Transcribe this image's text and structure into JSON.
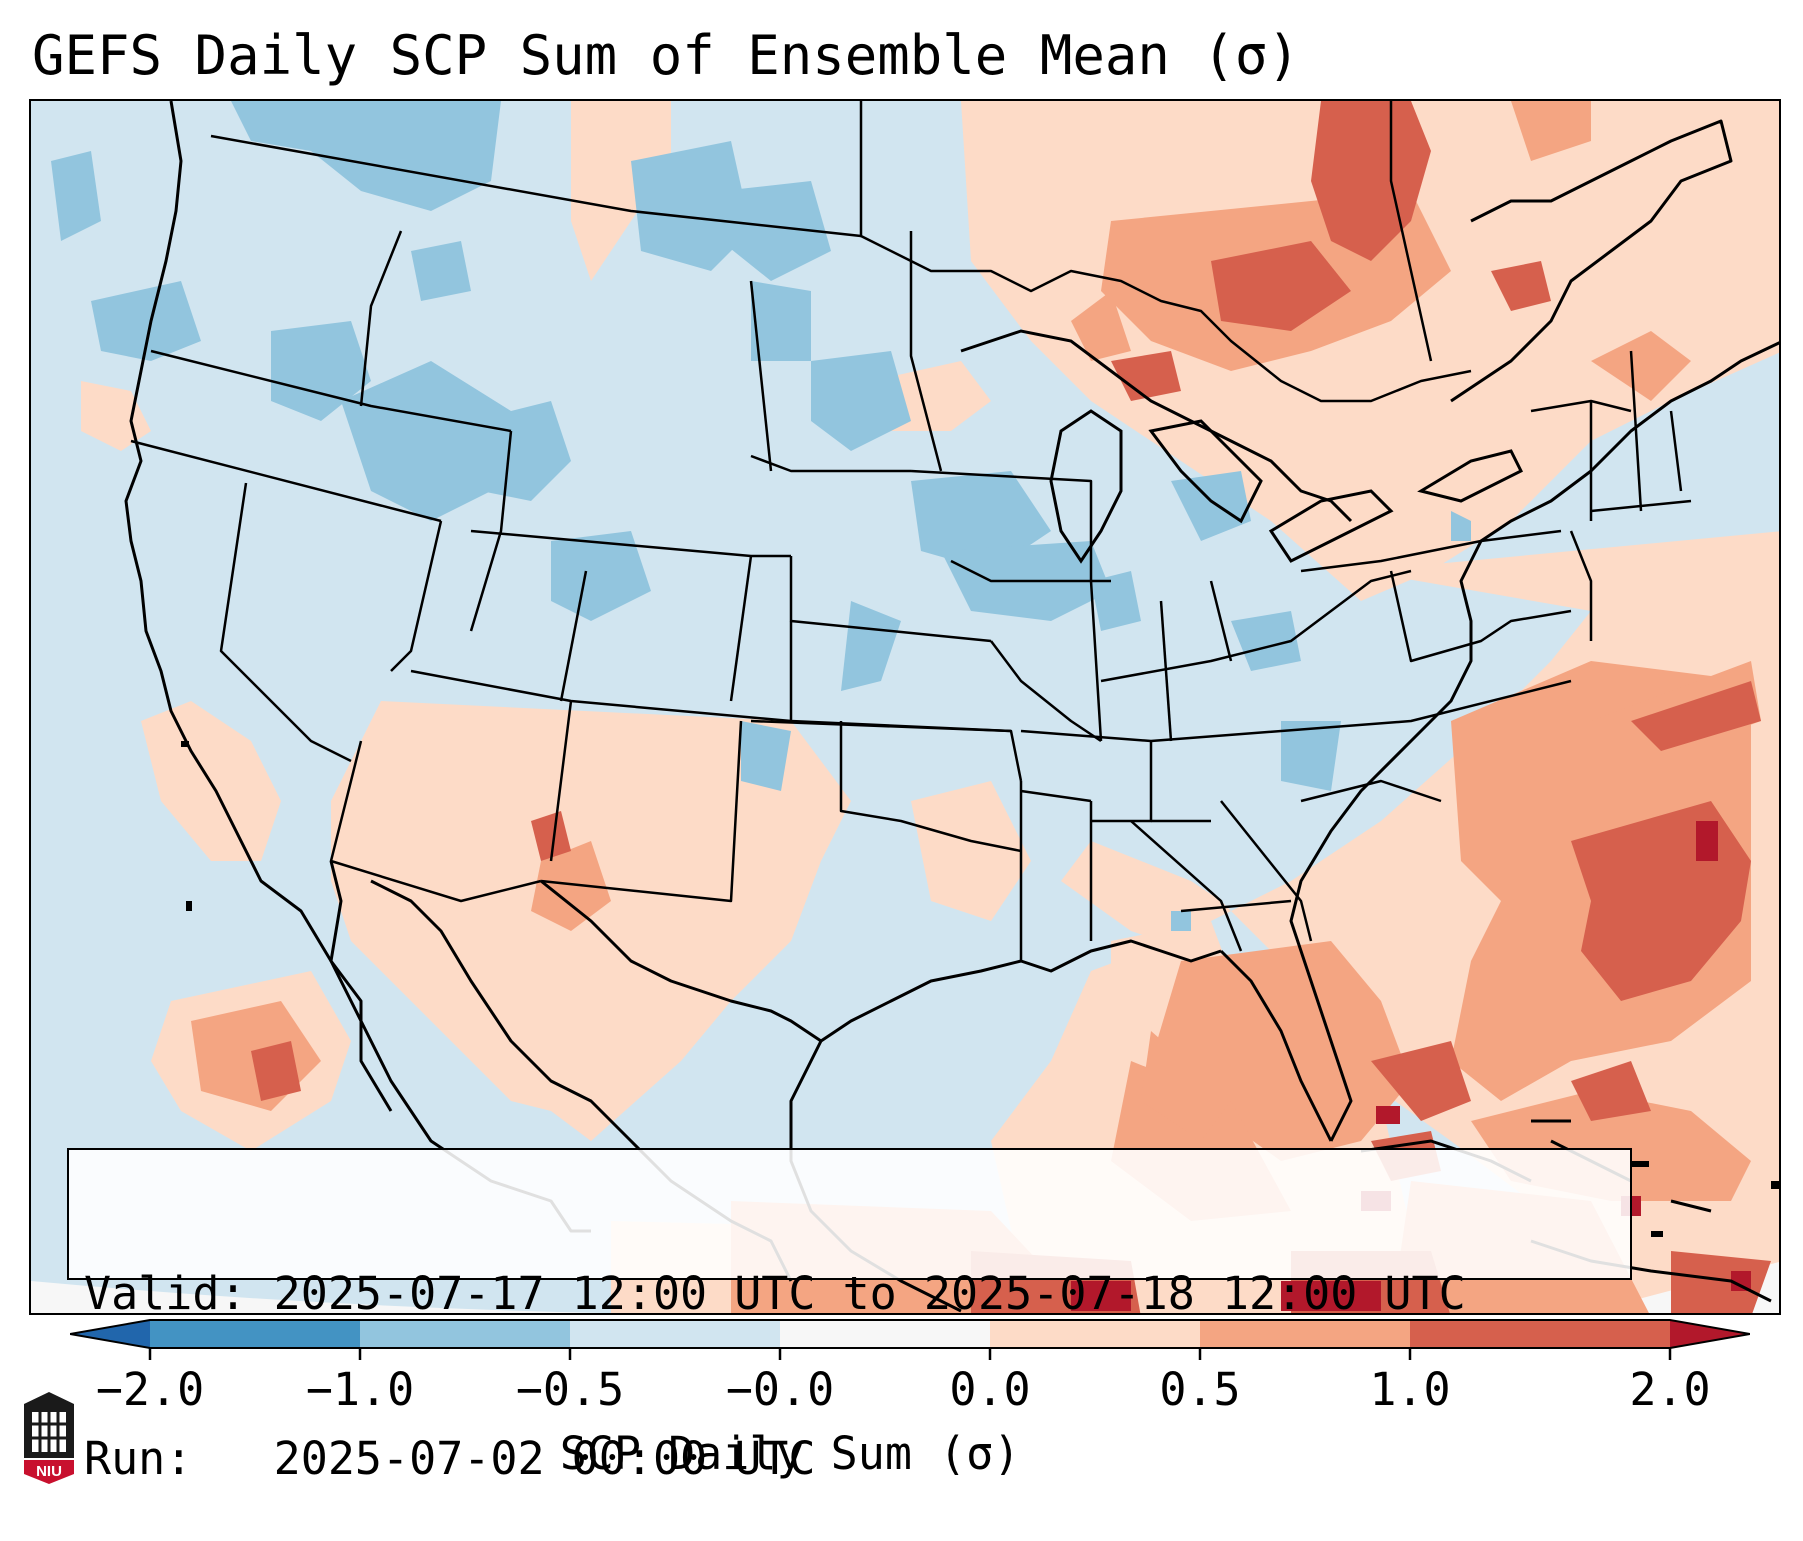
{
  "title": "GEFS Daily SCP Sum of Ensemble Mean (σ)",
  "info_box": {
    "valid_line": "Valid: 2025-07-17 12:00 UTC to 2025-07-18 12:00 UTC",
    "run_line": "Run:   2025-07-02 00:00 UTC"
  },
  "colorbar": {
    "title": "SCP Daily Sum (σ)",
    "tick_labels": [
      "−2.0",
      "−1.0",
      "−0.5",
      "−0.0",
      "0.0",
      "0.5",
      "1.0",
      "2.0"
    ],
    "bins": [
      {
        "range": "< -2.0",
        "color": "#2166ac"
      },
      {
        "range": "-2.0 to -1.0",
        "color": "#4393c3"
      },
      {
        "range": "-1.0 to -0.5",
        "color": "#92c5de"
      },
      {
        "range": "-0.5 to -0.0",
        "color": "#d1e5f0"
      },
      {
        "range": "-0.0 to 0.0",
        "color": "#f7f7f7"
      },
      {
        "range": "0.0 to 0.5",
        "color": "#fddbc7"
      },
      {
        "range": "0.5 to 1.0",
        "color": "#f4a582"
      },
      {
        "range": "1.0 to 2.0",
        "color": "#d6604d"
      },
      {
        "range": "> 2.0",
        "color": "#b2182b"
      }
    ]
  },
  "colors": {
    "background_field": "#d1e5f0",
    "outside_domain": "#f7f7f7",
    "borders": "#000000"
  },
  "logo": {
    "text": "NIU",
    "color": "#c8102e"
  }
}
